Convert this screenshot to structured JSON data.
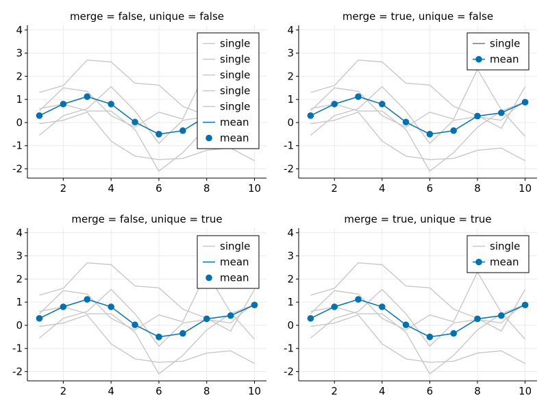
{
  "chart_data": [
    {
      "type": "line",
      "title": "merge = false, unique = false",
      "xlabel": "",
      "ylabel": "",
      "xlim": [
        0.5,
        10.5
      ],
      "ylim": [
        -2.4,
        4.2
      ],
      "xticks": [
        2,
        4,
        6,
        8,
        10
      ],
      "yticks": [
        -2,
        -1,
        0,
        1,
        2,
        3,
        4
      ],
      "xticklabels": [
        "2",
        "4",
        "6",
        "8",
        "10"
      ],
      "yticklabels": [
        "-2",
        "-1",
        "0",
        "1",
        "2",
        "3",
        "4"
      ],
      "grid": true,
      "legend_position": "top-right",
      "legend": [
        {
          "label": "single",
          "kind": "line",
          "color": "#c8c8c8"
        },
        {
          "label": "single",
          "kind": "line",
          "color": "#c8c8c8"
        },
        {
          "label": "single",
          "kind": "line",
          "color": "#c8c8c8"
        },
        {
          "label": "single",
          "kind": "line",
          "color": "#c8c8c8"
        },
        {
          "label": "single",
          "kind": "line",
          "color": "#c8c8c8"
        },
        {
          "label": "mean",
          "kind": "line",
          "color": "#0072b2"
        },
        {
          "label": "mean",
          "kind": "marker",
          "color": "#0072b2"
        }
      ]
    },
    {
      "type": "line",
      "title": "merge = true, unique = false",
      "xlabel": "",
      "ylabel": "",
      "xlim": [
        0.5,
        10.5
      ],
      "ylim": [
        -2.4,
        4.2
      ],
      "xticks": [
        2,
        4,
        6,
        8,
        10
      ],
      "yticks": [
        -2,
        -1,
        0,
        1,
        2,
        3,
        4
      ],
      "xticklabels": [
        "2",
        "4",
        "6",
        "8",
        "10"
      ],
      "yticklabels": [
        "-2",
        "-1",
        "0",
        "1",
        "2",
        "3",
        "4"
      ],
      "grid": true,
      "legend_position": "top-right",
      "legend": [
        {
          "label": "single",
          "kind": "line",
          "color": "#777777"
        },
        {
          "label": "mean",
          "kind": "linemarker",
          "color": "#0072b2"
        }
      ]
    },
    {
      "type": "line",
      "title": "merge = false, unique = true",
      "xlabel": "",
      "ylabel": "",
      "xlim": [
        0.5,
        10.5
      ],
      "ylim": [
        -2.4,
        4.2
      ],
      "xticks": [
        2,
        4,
        6,
        8,
        10
      ],
      "yticks": [
        -2,
        -1,
        0,
        1,
        2,
        3,
        4
      ],
      "xticklabels": [
        "2",
        "4",
        "6",
        "8",
        "10"
      ],
      "yticklabels": [
        "-2",
        "-1",
        "0",
        "1",
        "2",
        "3",
        "4"
      ],
      "grid": true,
      "legend_position": "top-right",
      "legend": [
        {
          "label": "single",
          "kind": "line",
          "color": "#c8c8c8"
        },
        {
          "label": "mean",
          "kind": "line",
          "color": "#0072b2"
        },
        {
          "label": "mean",
          "kind": "marker",
          "color": "#0072b2"
        }
      ]
    },
    {
      "type": "line",
      "title": "merge = true, unique = true",
      "xlabel": "",
      "ylabel": "",
      "xlim": [
        0.5,
        10.5
      ],
      "ylim": [
        -2.4,
        4.2
      ],
      "xticks": [
        2,
        4,
        6,
        8,
        10
      ],
      "yticks": [
        -2,
        -1,
        0,
        1,
        2,
        3,
        4
      ],
      "xticklabels": [
        "2",
        "4",
        "6",
        "8",
        "10"
      ],
      "yticklabels": [
        "-2",
        "-1",
        "0",
        "1",
        "2",
        "3",
        "4"
      ],
      "grid": true,
      "legend_position": "top-right",
      "legend": [
        {
          "label": "single",
          "kind": "line",
          "color": "#c8c8c8"
        },
        {
          "label": "mean",
          "kind": "linemarker",
          "color": "#0072b2"
        }
      ]
    }
  ],
  "shared_series": {
    "x": [
      1,
      2,
      3,
      4,
      5,
      6,
      7,
      8,
      9,
      10
    ],
    "single": [
      {
        "values": [
          1.3,
          1.6,
          2.7,
          2.62,
          1.7,
          1.62,
          0.7,
          0.3,
          -0.25,
          1.55
        ]
      },
      {
        "values": [
          0.5,
          1.5,
          1.35,
          0.3,
          -0.2,
          0.45,
          0.15,
          2.3,
          0.55,
          -0.6
        ]
      },
      {
        "values": [
          -0.55,
          0.3,
          0.6,
          1.55,
          0.5,
          -0.9,
          0.1,
          0.25,
          0.1,
          1.0
        ]
      },
      {
        "values": [
          0.6,
          0.8,
          0.5,
          0.5,
          -0.3,
          -2.1,
          -1.3,
          -0.2,
          0.5,
          0.9
        ]
      },
      {
        "values": [
          -0.05,
          0.1,
          0.45,
          -0.8,
          -1.45,
          -1.6,
          -1.55,
          -1.2,
          -1.1,
          -1.65
        ]
      }
    ],
    "mean": {
      "values": [
        0.3,
        0.8,
        1.12,
        0.8,
        0.02,
        -0.5,
        -0.35,
        0.28,
        0.42,
        0.88
      ]
    }
  },
  "colors": {
    "single_line": "#c8c8c8",
    "single_legend_merged": "#777777",
    "mean": "#0072b2",
    "grid": "#ebebeb",
    "axis": "#000000"
  }
}
